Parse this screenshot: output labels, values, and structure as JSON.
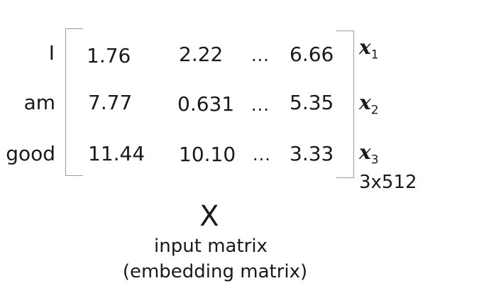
{
  "matrix": {
    "rows": [
      {
        "label": "I",
        "cells": [
          "1.76",
          "2.22",
          "...",
          "6.66"
        ],
        "vector": "x",
        "sub": "1"
      },
      {
        "label": "am",
        "cells": [
          "7.77",
          "0.631",
          "...",
          "5.35"
        ],
        "vector": "x",
        "sub": "2"
      },
      {
        "label": "good",
        "cells": [
          "11.44",
          "10.10",
          "...",
          "3.33"
        ],
        "vector": "x",
        "sub": "3"
      }
    ],
    "dimensions": "3x512"
  },
  "symbol": "X",
  "caption": {
    "line1": "input matrix",
    "line2": "(embedding matrix)"
  }
}
